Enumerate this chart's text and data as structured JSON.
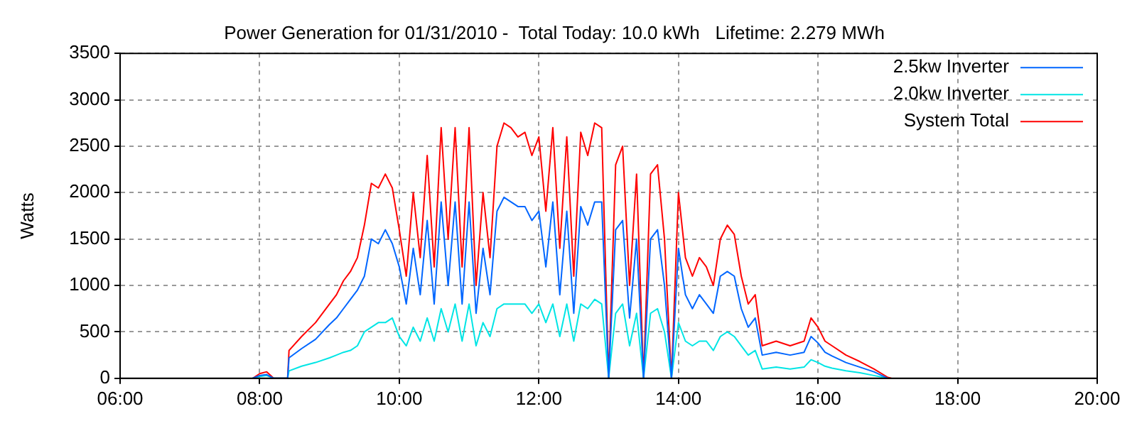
{
  "chart_data": {
    "type": "line",
    "title": "Power Generation for 01/31/2010 -  Total Today: 10.0 kWh   Lifetime: 2.279 MWh",
    "ylabel": "Watts",
    "x": [
      7.9,
      8.0,
      8.1,
      8.2,
      8.3,
      8.4,
      8.42,
      8.6,
      8.8,
      9.0,
      9.1,
      9.2,
      9.3,
      9.4,
      9.5,
      9.6,
      9.7,
      9.8,
      9.9,
      10.0,
      10.1,
      10.2,
      10.3,
      10.4,
      10.5,
      10.6,
      10.7,
      10.8,
      10.9,
      11.0,
      11.1,
      11.2,
      11.3,
      11.4,
      11.5,
      11.6,
      11.7,
      11.8,
      11.9,
      12.0,
      12.1,
      12.2,
      12.3,
      12.4,
      12.5,
      12.6,
      12.7,
      12.8,
      12.9,
      13.0,
      13.1,
      13.2,
      13.3,
      13.4,
      13.5,
      13.6,
      13.7,
      13.8,
      13.9,
      14.0,
      14.1,
      14.2,
      14.3,
      14.4,
      14.5,
      14.6,
      14.7,
      14.8,
      14.9,
      15.0,
      15.1,
      15.2,
      15.4,
      15.6,
      15.8,
      15.9,
      16.0,
      16.1,
      16.2,
      16.4,
      16.6,
      16.8,
      17.0,
      17.05
    ],
    "series": [
      {
        "name": "2.5kw Inverter",
        "color": "#0066ff",
        "values": [
          0,
          30,
          40,
          0,
          0,
          0,
          220,
          320,
          420,
          580,
          650,
          750,
          850,
          950,
          1100,
          1500,
          1450,
          1600,
          1450,
          1200,
          800,
          1400,
          900,
          1700,
          800,
          1900,
          1000,
          1900,
          800,
          1900,
          700,
          1400,
          900,
          1800,
          1950,
          1900,
          1850,
          1850,
          1700,
          1800,
          1200,
          1900,
          900,
          1800,
          700,
          1850,
          1650,
          1900,
          1900,
          0,
          1600,
          1700,
          650,
          1500,
          0,
          1500,
          1600,
          1000,
          0,
          1400,
          900,
          750,
          900,
          800,
          700,
          1100,
          1150,
          1100,
          750,
          550,
          650,
          250,
          280,
          250,
          280,
          450,
          380,
          280,
          240,
          170,
          120,
          70,
          0,
          null
        ]
      },
      {
        "name": "2.0kw Inverter",
        "color": "#00e5e5",
        "values": [
          0,
          20,
          30,
          0,
          0,
          0,
          80,
          130,
          170,
          220,
          250,
          280,
          300,
          350,
          500,
          550,
          600,
          600,
          650,
          450,
          350,
          550,
          400,
          650,
          400,
          750,
          500,
          800,
          400,
          800,
          350,
          600,
          450,
          750,
          800,
          800,
          800,
          800,
          700,
          800,
          600,
          800,
          450,
          800,
          400,
          800,
          750,
          850,
          800,
          0,
          700,
          800,
          350,
          700,
          0,
          700,
          750,
          500,
          0,
          600,
          400,
          350,
          400,
          400,
          300,
          450,
          500,
          450,
          350,
          250,
          300,
          100,
          120,
          100,
          120,
          200,
          170,
          130,
          110,
          80,
          60,
          30,
          0,
          null
        ]
      },
      {
        "name": "System Total",
        "color": "#ff0000",
        "values": [
          0,
          50,
          70,
          0,
          0,
          0,
          300,
          450,
          600,
          800,
          900,
          1050,
          1150,
          1300,
          1650,
          2100,
          2050,
          2200,
          2050,
          1600,
          1100,
          2000,
          1300,
          2400,
          1200,
          2700,
          1500,
          2700,
          1200,
          2700,
          1000,
          2000,
          1300,
          2500,
          2750,
          2700,
          2600,
          2650,
          2400,
          2600,
          1800,
          2700,
          1400,
          2600,
          1100,
          2650,
          2400,
          2750,
          2700,
          0,
          2300,
          2500,
          1000,
          2200,
          0,
          2200,
          2300,
          1500,
          0,
          2000,
          1300,
          1100,
          1300,
          1200,
          1000,
          1500,
          1650,
          1550,
          1100,
          800,
          900,
          350,
          400,
          350,
          400,
          650,
          550,
          400,
          350,
          250,
          180,
          100,
          10,
          0
        ]
      }
    ],
    "xlim": [
      6,
      20
    ],
    "xticks": [
      {
        "value": 6,
        "label": "06:00"
      },
      {
        "value": 8,
        "label": "08:00"
      },
      {
        "value": 10,
        "label": "10:00"
      },
      {
        "value": 12,
        "label": "12:00"
      },
      {
        "value": 14,
        "label": "14:00"
      },
      {
        "value": 16,
        "label": "16:00"
      },
      {
        "value": 18,
        "label": "18:00"
      },
      {
        "value": 20,
        "label": "20:00"
      }
    ],
    "ylim": [
      0,
      3500
    ],
    "yticks": [
      0,
      500,
      1000,
      1500,
      2000,
      2500,
      3000,
      3500
    ],
    "grid": true,
    "legend": "top right",
    "marker": "none",
    "line_style": "solid"
  }
}
